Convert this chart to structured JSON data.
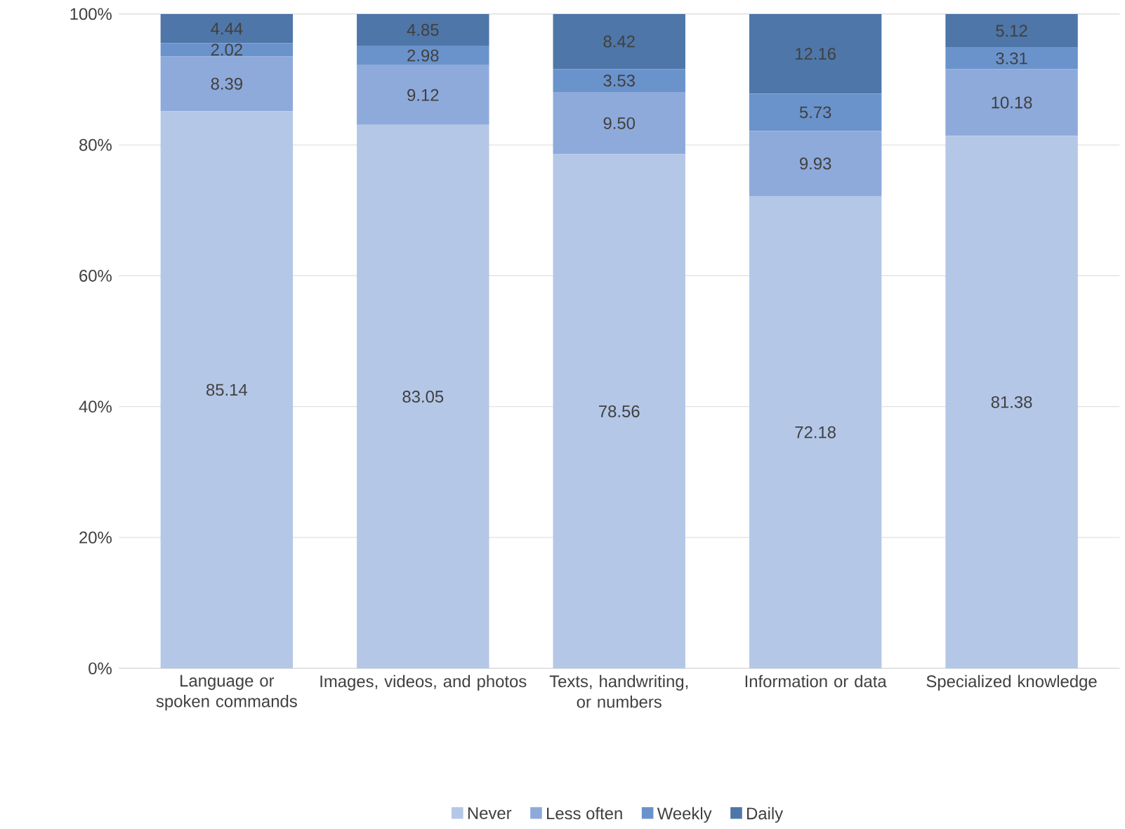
{
  "chart_data": {
    "type": "bar",
    "stacked": true,
    "categories": [
      "Language or spoken commands",
      "Images, videos, and photos",
      "Texts, handwriting, or numbers",
      "Information or data",
      "Specialized knowledge"
    ],
    "series": [
      {
        "name": "Never",
        "color": "#b4c7e7",
        "values": [
          85.14,
          83.05,
          78.56,
          72.18,
          81.38
        ],
        "value_labels": [
          "85.14",
          "83.05",
          "78.56",
          "72.18",
          "81.38"
        ]
      },
      {
        "name": "Less often",
        "color": "#8eaadb",
        "values": [
          8.39,
          9.12,
          9.5,
          9.93,
          10.18
        ],
        "value_labels": [
          "8.39",
          "9.12",
          "9.50",
          "9.93",
          "10.18"
        ]
      },
      {
        "name": "Weekly",
        "color": "#6a93cc",
        "values": [
          2.02,
          2.98,
          3.53,
          5.73,
          3.31
        ],
        "value_labels": [
          "2.02",
          "2.98",
          "3.53",
          "5.73",
          "3.31"
        ]
      },
      {
        "name": "Daily",
        "color": "#4e76a8",
        "values": [
          4.44,
          4.85,
          8.42,
          12.16,
          5.12
        ],
        "value_labels": [
          "4.44",
          "4.85",
          "8.42",
          "12.16",
          "5.12"
        ]
      }
    ],
    "ylim": [
      0,
      100
    ],
    "yticks": [
      {
        "value": 0,
        "label": "0%"
      },
      {
        "value": 20,
        "label": "20%"
      },
      {
        "value": 40,
        "label": "40%"
      },
      {
        "value": 60,
        "label": "60%"
      },
      {
        "value": 80,
        "label": "80%"
      },
      {
        "value": 100,
        "label": "100%"
      }
    ],
    "grid": "y",
    "legend": "bottom"
  }
}
